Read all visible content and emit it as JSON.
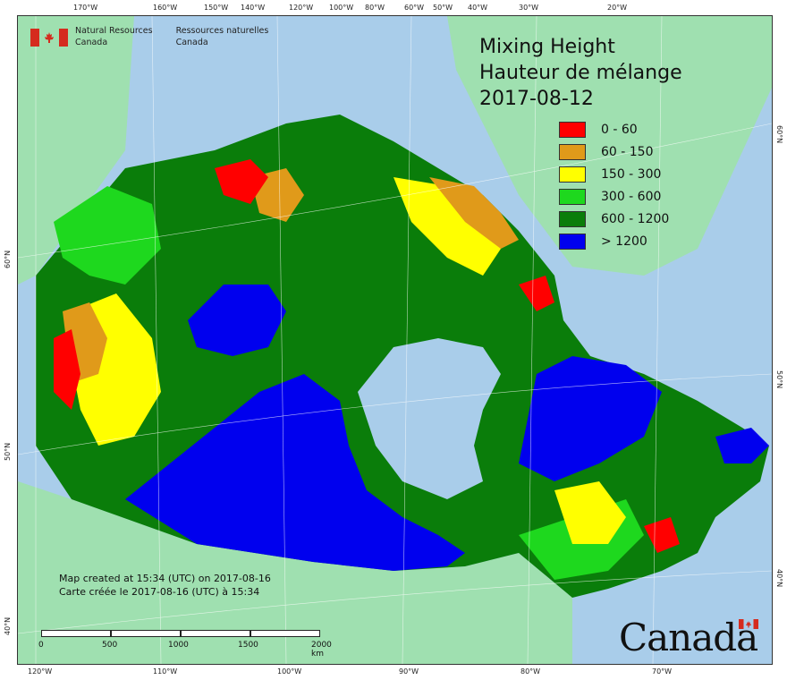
{
  "header": {
    "agency_en_line1": "Natural Resources",
    "agency_en_line2": "Canada",
    "agency_fr_line1": "Ressources naturelles",
    "agency_fr_line2": "Canada"
  },
  "title": {
    "line1": "Mixing Height",
    "line2": "Hauteur de mélange",
    "date": "2017-08-12"
  },
  "legend": [
    {
      "label": "0 - 60",
      "color": "#ff0000"
    },
    {
      "label": "60 - 150",
      "color": "#e09a1a"
    },
    {
      "label": "150 - 300",
      "color": "#ffff00"
    },
    {
      "label": "300 - 600",
      "color": "#1ed81e"
    },
    {
      "label": "600 - 1200",
      "color": "#0a7d0a"
    },
    {
      "label": "> 1200",
      "color": "#0000ee"
    }
  ],
  "credits": {
    "line1": "Map created at 15:34 (UTC) on 2017-08-16",
    "line2": "Carte créée le 2017-08-16 (UTC) à 15:34"
  },
  "scalebar": {
    "labels": [
      "0",
      "500",
      "1000",
      "1500",
      "2000 km"
    ]
  },
  "wordmark": "Canada",
  "graticule": {
    "top": [
      "170°W",
      "160°W",
      "150°W",
      "140°W",
      "120°W",
      "100°W",
      "80°W",
      "60°W",
      "50°W",
      "40°W",
      "30°W",
      "20°W"
    ],
    "bottom": [
      "120°W",
      "110°W",
      "100°W",
      "90°W",
      "80°W",
      "70°W"
    ],
    "left": [
      "60°N",
      "50°N",
      "40°N"
    ],
    "right": [
      "60°N",
      "50°N",
      "40°N"
    ]
  },
  "colors": {
    "ocean": "#a9cdea",
    "land_other": "#9fe0b0",
    "graticule": "#ffffff"
  }
}
